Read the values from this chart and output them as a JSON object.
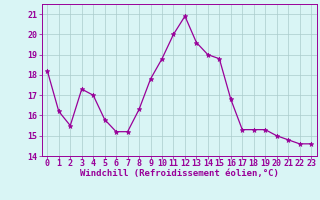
{
  "x": [
    0,
    1,
    2,
    3,
    4,
    5,
    6,
    7,
    8,
    9,
    10,
    11,
    12,
    13,
    14,
    15,
    16,
    17,
    18,
    19,
    20,
    21,
    22,
    23
  ],
  "y": [
    18.2,
    16.2,
    15.5,
    17.3,
    17.0,
    15.8,
    15.2,
    15.2,
    16.3,
    17.8,
    18.8,
    20.0,
    20.9,
    19.6,
    19.0,
    18.8,
    16.8,
    15.3,
    15.3,
    15.3,
    15.0,
    14.8,
    14.6,
    14.6
  ],
  "line_color": "#990099",
  "marker": "*",
  "marker_size": 3.5,
  "bg_color": "#d9f5f5",
  "grid_color": "#aacccc",
  "xlabel": "Windchill (Refroidissement éolien,°C)",
  "ylim": [
    14,
    21.5
  ],
  "yticks": [
    14,
    15,
    16,
    17,
    18,
    19,
    20,
    21
  ],
  "xlim": [
    -0.5,
    23.5
  ],
  "xticks": [
    0,
    1,
    2,
    3,
    4,
    5,
    6,
    7,
    8,
    9,
    10,
    11,
    12,
    13,
    14,
    15,
    16,
    17,
    18,
    19,
    20,
    21,
    22,
    23
  ],
  "label_fontsize": 6.5,
  "tick_fontsize": 6.0
}
